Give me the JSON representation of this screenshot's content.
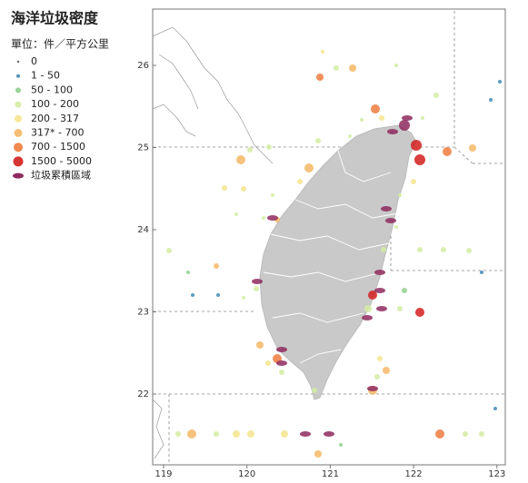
{
  "title": "海洋垃圾密度",
  "unit": "單位：件／平方公里",
  "legend": [
    {
      "label": "0",
      "color": "#555555"
    },
    {
      "label": "1 - 50",
      "color": "#3f88b5"
    },
    {
      "label": "50 - 100",
      "color": "#8fcf8f"
    },
    {
      "label": "100 - 200",
      "color": "#d3eca2"
    },
    {
      "label": "200 - 317",
      "color": "#f5e48c"
    },
    {
      "label": "317* - 700",
      "color": "#f5b766"
    },
    {
      "label": "700 - 1500",
      "color": "#ee7b3d"
    },
    {
      "label": "1500 - 5000",
      "color": "#d31f1f"
    },
    {
      "label": "垃圾累積區域",
      "color": "#8e2a5e"
    }
  ],
  "map": {
    "lon_ticks": [
      119,
      120,
      121,
      122,
      123
    ],
    "lat_ticks": [
      22,
      23,
      24,
      25,
      26
    ]
  }
}
